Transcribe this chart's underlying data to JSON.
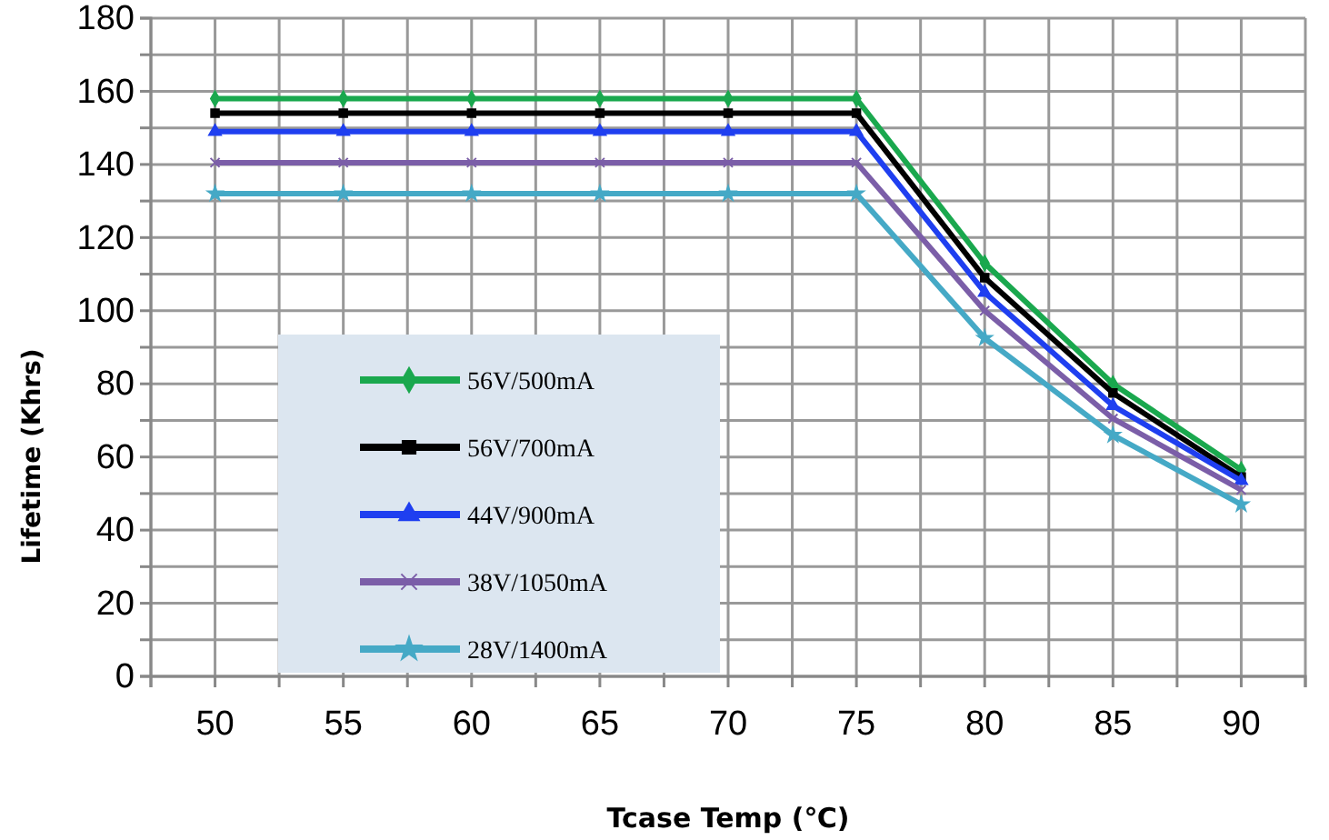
{
  "chart_data": {
    "type": "line",
    "xlabel": "Tcase Temp (℃)",
    "ylabel": "Lifetime (Khrs)",
    "x": [
      50,
      55,
      60,
      65,
      70,
      75,
      80,
      85,
      90
    ],
    "xlim": [
      47.5,
      92.5
    ],
    "xticks": [
      {
        "value": 47.5,
        "label": null
      },
      50,
      {
        "value": 52.5,
        "label": null
      },
      55,
      {
        "value": 57.5,
        "label": null
      },
      60,
      {
        "value": 62.5,
        "label": null
      },
      65,
      {
        "value": 67.5,
        "label": null
      },
      70,
      {
        "value": 72.5,
        "label": null
      },
      75,
      {
        "value": 77.5,
        "label": null
      },
      80,
      {
        "value": 82.5,
        "label": null
      },
      85,
      {
        "value": 87.5,
        "label": null
      },
      90,
      {
        "value": 92.5,
        "label": null
      }
    ],
    "ylim": [
      0,
      180
    ],
    "yticks": [
      0,
      {
        "value": 10,
        "label": null
      },
      20,
      {
        "value": 30,
        "label": null
      },
      40,
      {
        "value": 50,
        "label": null
      },
      60,
      {
        "value": 70,
        "label": null
      },
      80,
      {
        "value": 90,
        "label": null
      },
      100,
      {
        "value": 110,
        "label": null
      },
      120,
      {
        "value": 130,
        "label": null
      },
      140,
      {
        "value": 150,
        "label": null
      },
      160,
      {
        "value": 170,
        "label": null
      },
      180
    ],
    "grid": true,
    "legend": "bottom left",
    "series": [
      {
        "name": "56V/500mA",
        "color": "#1aa84e",
        "marker": "diamond",
        "values": [
          158,
          158,
          158,
          158,
          158,
          158,
          113,
          80,
          56.5
        ]
      },
      {
        "name": "56V/700mA",
        "color": "#000000",
        "marker": "square",
        "values": [
          154,
          154,
          154,
          154,
          154,
          154,
          109,
          77.5,
          54.5
        ]
      },
      {
        "name": "44V/900mA",
        "color": "#1f3ff0",
        "marker": "triangle",
        "values": [
          149,
          149,
          149,
          149,
          149,
          149,
          105,
          74,
          53.5
        ]
      },
      {
        "name": "38V/1050mA",
        "color": "#7b5ea8",
        "marker": "cross",
        "values": [
          140.5,
          140.5,
          140.5,
          140.5,
          140.5,
          140.5,
          100,
          70.5,
          51
        ]
      },
      {
        "name": "28V/1400mA",
        "color": "#45a9c6",
        "marker": "star",
        "values": [
          132,
          132,
          132,
          132,
          132,
          132,
          92.5,
          66,
          47
        ]
      }
    ]
  }
}
